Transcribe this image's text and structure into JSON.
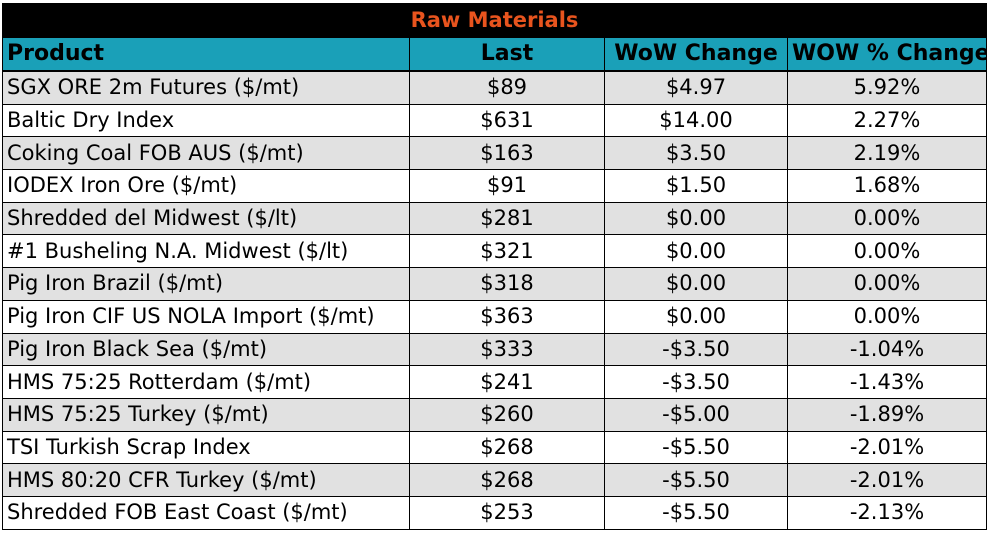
{
  "title": "Raw Materials",
  "columns": [
    "Product",
    "Last",
    "WoW Change",
    "WOW % Change"
  ],
  "rows": [
    {
      "product": "SGX ORE 2m Futures ($/mt)",
      "last": "$89",
      "wow_change": "$4.97",
      "wow_pct": "5.92%"
    },
    {
      "product": "Baltic Dry Index",
      "last": "$631",
      "wow_change": "$14.00",
      "wow_pct": "2.27%"
    },
    {
      "product": "Coking Coal FOB AUS ($/mt)",
      "last": "$163",
      "wow_change": "$3.50",
      "wow_pct": "2.19%"
    },
    {
      "product": "IODEX  Iron Ore ($/mt)",
      "last": "$91",
      "wow_change": "$1.50",
      "wow_pct": "1.68%"
    },
    {
      "product": "Shredded del  Midwest ($/lt)",
      "last": "$281",
      "wow_change": "$0.00",
      "wow_pct": "0.00%"
    },
    {
      "product": "#1 Busheling N.A. Midwest ($/lt)",
      "last": "$321",
      "wow_change": "$0.00",
      "wow_pct": "0.00%"
    },
    {
      "product": "Pig Iron Brazil ($/mt)",
      "last": "$318",
      "wow_change": "$0.00",
      "wow_pct": "0.00%"
    },
    {
      "product": "Pig Iron CIF US NOLA Import ($/mt)",
      "last": "$363",
      "wow_change": "$0.00",
      "wow_pct": "0.00%"
    },
    {
      "product": "Pig Iron Black Sea ($/mt)",
      "last": "$333",
      "wow_change": "-$3.50",
      "wow_pct": "-1.04%"
    },
    {
      "product": "HMS 75:25 Rotterdam ($/mt)",
      "last": "$241",
      "wow_change": "-$3.50",
      "wow_pct": "-1.43%"
    },
    {
      "product": "HMS 75:25 Turkey ($/mt)",
      "last": "$260",
      "wow_change": "-$5.00",
      "wow_pct": "-1.89%"
    },
    {
      "product": "TSI Turkish Scrap Index",
      "last": "$268",
      "wow_change": "-$5.50",
      "wow_pct": "-2.01%"
    },
    {
      "product": "HMS 80:20 CFR Turkey ($/mt)",
      "last": "$268",
      "wow_change": "-$5.50",
      "wow_pct": "-2.01%"
    },
    {
      "product": "Shredded FOB East Coast ($/mt)",
      "last": "$253",
      "wow_change": "-$5.50",
      "wow_pct": "-2.13%"
    }
  ]
}
